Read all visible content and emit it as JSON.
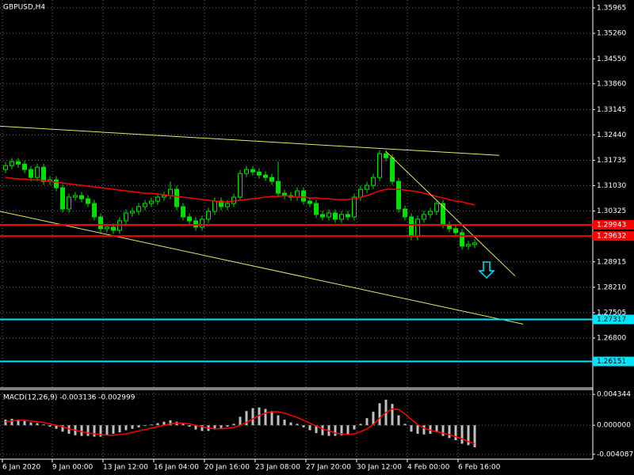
{
  "chart_data": [
    {
      "type": "candlestick",
      "title": "GBPUSD,H4",
      "grid": true,
      "candle_color": "#00e000",
      "background": "#000000",
      "xlim": [
        -0.875,
        92.625
      ],
      "ylim": [
        1.25415,
        1.36185
      ],
      "yticks": [
        1.35965,
        {
          "value": 1.3526,
          "label": "1.35260"
        },
        {
          "value": 1.3455,
          "label": "1.34550"
        },
        {
          "value": 1.3386,
          "label": "1.33860"
        },
        1.33145,
        {
          "value": 1.3244,
          "label": "1.32440"
        },
        1.31735,
        {
          "value": 1.3103,
          "label": "1.31030"
        },
        1.30325,
        1.28915,
        {
          "value": 1.2821,
          "label": "1.28210"
        },
        1.27505,
        {
          "value": 1.268,
          "label": "1.26800"
        }
      ],
      "xticks": [
        {
          "value": -0.5,
          "label": "6 Jan 2020"
        },
        {
          "value": 7.375,
          "label": "9 Jan 00:00"
        },
        {
          "value": 15.375,
          "label": "13 Jan 12:00"
        },
        {
          "value": 23.375,
          "label": "16 Jan 04:00"
        },
        {
          "value": 31.375,
          "label": "20 Jan 16:00"
        },
        {
          "value": 39.375,
          "label": "23 Jan 08:00"
        },
        {
          "value": 47.375,
          "label": "27 Jan 20:00"
        },
        {
          "value": 55.375,
          "label": "30 Jan 12:00"
        },
        {
          "value": 63.375,
          "label": "4 Feb 00:00"
        },
        {
          "value": 71.375,
          "label": "6 Feb 16:00"
        }
      ],
      "open": [
        1.3148,
        1.31586,
        1.31696,
        1.3163,
        1.31477,
        1.31258,
        1.31542,
        1.31148,
        1.31192,
        1.30973,
        1.30382,
        1.30711,
        1.30754,
        1.30667,
        1.30535,
        1.30163,
        1.29835,
        1.29879,
        1.29791,
        1.30054,
        1.30272,
        1.30316,
        1.30448,
        1.30535,
        1.30601,
        1.30711,
        1.30754,
        1.30929,
        1.30448,
        1.30163,
        1.30054,
        1.29879,
        1.30098,
        1.30316,
        1.30601,
        1.30448,
        1.30535,
        1.30711,
        1.31367,
        1.31477,
        1.31411,
        1.31324,
        1.31258,
        1.31148,
        1.3082,
        1.30754,
        1.30711,
        1.30886,
        1.30601,
        1.30535,
        1.30229,
        1.30163,
        1.30272,
        1.30098,
        1.30229,
        1.30163,
        1.30711,
        1.30929,
        1.31039,
        1.31258,
        1.31915,
        1.31805,
        1.31148,
        1.30382,
        1.30163,
        1.29616,
        1.30098,
        1.30229,
        1.30316,
        1.30535,
        1.29944,
        1.29835,
        1.29725,
        1.29353,
        1.29397
      ],
      "high": [
        1.31686,
        1.31796,
        1.31796,
        1.3173,
        1.31577,
        1.31642,
        1.31642,
        1.31292,
        1.31292,
        1.31073,
        1.30811,
        1.30854,
        1.30854,
        1.30767,
        1.30635,
        1.30263,
        1.29979,
        1.29979,
        1.30154,
        1.30372,
        1.30416,
        1.30548,
        1.30635,
        1.30701,
        1.30811,
        1.30854,
        1.3115,
        1.31029,
        1.30548,
        1.30263,
        1.30154,
        1.30198,
        1.30416,
        1.30701,
        1.30701,
        1.30635,
        1.30811,
        1.31467,
        1.31577,
        1.31577,
        1.31511,
        1.31424,
        1.31358,
        1.317,
        1.3092,
        1.30854,
        1.30986,
        1.30986,
        1.30701,
        1.30635,
        1.30329,
        1.30372,
        1.30372,
        1.30329,
        1.30329,
        1.30811,
        1.31029,
        1.31139,
        1.31358,
        1.32015,
        1.32015,
        1.31905,
        1.31248,
        1.30482,
        1.30263,
        1.30198,
        1.30329,
        1.30416,
        1.30635,
        1.30635,
        1.30044,
        1.29935,
        1.29825,
        1.29497,
        1.29541
      ],
      "low": [
        1.3138,
        1.31486,
        1.3153,
        1.31377,
        1.31158,
        1.31158,
        1.31048,
        1.31048,
        1.30873,
        1.30282,
        1.30282,
        1.30611,
        1.30567,
        1.30435,
        1.30063,
        1.29735,
        1.29735,
        1.29691,
        1.29691,
        1.29954,
        1.30172,
        1.30216,
        1.30348,
        1.30435,
        1.30501,
        1.30611,
        1.30654,
        1.30348,
        1.30063,
        1.29954,
        1.29779,
        1.29779,
        1.29998,
        1.30216,
        1.30348,
        1.30348,
        1.30435,
        1.30611,
        1.31267,
        1.31311,
        1.31224,
        1.31158,
        1.31048,
        1.3072,
        1.30654,
        1.30611,
        1.30611,
        1.30501,
        1.30435,
        1.30129,
        1.30063,
        1.30063,
        1.29998,
        1.29998,
        1.30063,
        1.30063,
        1.30611,
        1.30829,
        1.30939,
        1.31158,
        1.31705,
        1.31048,
        1.30282,
        1.30063,
        1.29516,
        1.29516,
        1.29998,
        1.30129,
        1.30216,
        1.29844,
        1.29735,
        1.29625,
        1.29253,
        1.29253,
        1.29297
      ],
      "close": [
        1.31586,
        1.31696,
        1.3163,
        1.31477,
        1.31258,
        1.31542,
        1.31148,
        1.31192,
        1.30973,
        1.30382,
        1.30711,
        1.30754,
        1.30667,
        1.30535,
        1.30163,
        1.29835,
        1.29879,
        1.29791,
        1.30054,
        1.30272,
        1.30316,
        1.30448,
        1.30535,
        1.30601,
        1.30711,
        1.30754,
        1.30929,
        1.30448,
        1.30163,
        1.30054,
        1.29879,
        1.30098,
        1.30316,
        1.30601,
        1.30448,
        1.30535,
        1.30711,
        1.31367,
        1.31477,
        1.31411,
        1.31324,
        1.31258,
        1.31148,
        1.3082,
        1.30754,
        1.30711,
        1.30886,
        1.30601,
        1.30535,
        1.30229,
        1.30163,
        1.30272,
        1.30098,
        1.30229,
        1.30163,
        1.30711,
        1.30929,
        1.31039,
        1.31258,
        1.31915,
        1.31805,
        1.31148,
        1.30382,
        1.30163,
        1.29616,
        1.30098,
        1.30229,
        1.30316,
        1.30535,
        1.29944,
        1.29835,
        1.29725,
        1.29353,
        1.29397,
        1.29441
      ],
      "ma": {
        "color": "#ff0000",
        "values": [
          1.31258,
          1.31236,
          1.31214,
          1.31214,
          1.31192,
          1.31192,
          1.3117,
          1.31148,
          1.31126,
          1.31104,
          1.31083,
          1.31061,
          1.31039,
          1.31017,
          1.30995,
          1.30973,
          1.30951,
          1.30929,
          1.30908,
          1.30886,
          1.30864,
          1.30842,
          1.3082,
          1.3082,
          1.30798,
          1.30776,
          1.30754,
          1.30732,
          1.30711,
          1.30689,
          1.30667,
          1.30645,
          1.30623,
          1.30601,
          1.30579,
          1.30579,
          1.30601,
          1.30623,
          1.30645,
          1.30667,
          1.30689,
          1.30711,
          1.30732,
          1.30732,
          1.30754,
          1.30732,
          1.30711,
          1.30711,
          1.30689,
          1.30689,
          1.30667,
          1.30667,
          1.30645,
          1.30645,
          1.30645,
          1.30667,
          1.30711,
          1.30754,
          1.3082,
          1.30886,
          1.30929,
          1.30929,
          1.30929,
          1.30908,
          1.30886,
          1.30864,
          1.3082,
          1.30776,
          1.30732,
          1.30689,
          1.30645,
          1.30601,
          1.30579,
          1.30535,
          1.30491
        ]
      },
      "trendlines": [
        {
          "color": "#e6e66e",
          "x": [
            -0.875,
            77.875
          ],
          "y": [
            1.32681,
            1.31871
          ]
        },
        {
          "color": "#e6e66e",
          "x": [
            -0.875,
            81.625
          ],
          "y": [
            1.30316,
            1.27186
          ]
        },
        {
          "color": "#e6e66e",
          "x": [
            60,
            80.375
          ],
          "y": [
            1.3198,
            1.28521
          ]
        }
      ],
      "levels": [
        {
          "value": 1.29943,
          "color": "#ff0000",
          "text_color": "#ffffff"
        },
        {
          "value": 1.29632,
          "color": "#ff0000",
          "text_color": "#ffffff"
        },
        {
          "value": 1.27317,
          "color": "#00e5ff",
          "text_color": "#000000"
        },
        {
          "value": 1.26151,
          "color": "#00e5ff",
          "text_color": "#000000"
        }
      ]
    },
    {
      "type": "macd",
      "title": "MACD(12,26,9) -0.003136 -0.002999",
      "ylim": [
        -0.00477,
        0.00503
      ],
      "yticks": [
        0.004344,
        {
          "value": 0,
          "label": "0.000000"
        },
        -0.004087
      ],
      "histogram": {
        "color": "#c0c0c0",
        "values": [
          0.0008,
          0.0009,
          0.0008,
          0.0006,
          0.0004,
          0.0003,
          0.0001,
          -0.0002,
          -0.0005,
          -0.0009,
          -0.0012,
          -0.0014,
          -0.0015,
          -0.0015,
          -0.0016,
          -0.0016,
          -0.0014,
          -0.0012,
          -0.001,
          -0.0007,
          -0.0005,
          -0.0003,
          -0.0001,
          0.0001,
          0.0003,
          0.0005,
          0.0007,
          0.0005,
          0.0002,
          -0.0002,
          -0.0006,
          -0.0008,
          -0.0008,
          -0.0006,
          -0.0004,
          -0.0002,
          0.0002,
          0.0012,
          0.002,
          0.0024,
          0.0025,
          0.0023,
          0.002,
          0.0014,
          0.0008,
          0.0004,
          0.0002,
          -0.0003,
          -0.0007,
          -0.0011,
          -0.0014,
          -0.0015,
          -0.0015,
          -0.0014,
          -0.0013,
          -0.0006,
          0.0002,
          0.001,
          0.0019,
          0.0031,
          0.0036,
          0.003,
          0.0014,
          0.0002,
          -0.0009,
          -0.0012,
          -0.0013,
          -0.0012,
          -0.001,
          -0.0015,
          -0.0018,
          -0.0021,
          -0.0026,
          -0.0028,
          -0.0031
        ]
      },
      "signal": {
        "color": "#ff0000",
        "values": [
          0.0005,
          0.0006,
          0.0007,
          0.0007,
          0.0006,
          0.0005,
          0.0004,
          0.0002,
          0,
          -0.0002,
          -0.0005,
          -0.0007,
          -0.0009,
          -0.0011,
          -0.0012,
          -0.0013,
          -0.0014,
          -0.0014,
          -0.0013,
          -0.0012,
          -0.001,
          -0.0008,
          -0.0006,
          -0.0004,
          -0.0002,
          0,
          0.0002,
          0.0003,
          0.0003,
          0.0002,
          0,
          -0.0002,
          -0.0004,
          -0.0005,
          -0.0005,
          -0.0004,
          -0.0003,
          0,
          0.0004,
          0.0009,
          0.0014,
          0.0017,
          0.0019,
          0.0019,
          0.0017,
          0.0014,
          0.0011,
          0.0007,
          0.0003,
          -0.0001,
          -0.0005,
          -0.0008,
          -0.0011,
          -0.0012,
          -0.0013,
          -0.0012,
          -0.0009,
          -0.0005,
          0.0001,
          0.001,
          0.0018,
          0.0023,
          0.0022,
          0.0016,
          0.0008,
          0.0001,
          -0.0004,
          -0.0007,
          -0.0009,
          -0.0011,
          -0.0013,
          -0.0016,
          -0.0019,
          -0.0023,
          -0.0026
        ]
      }
    }
  ]
}
